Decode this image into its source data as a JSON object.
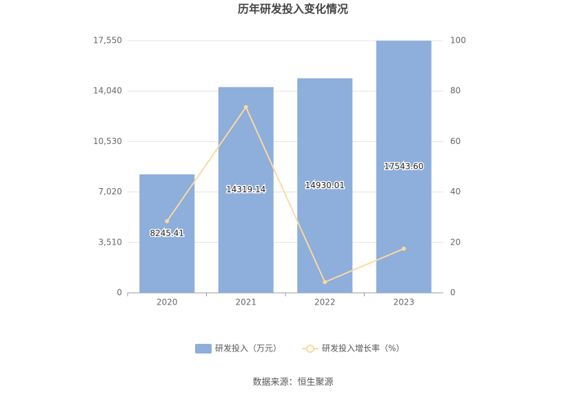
{
  "chart_data": {
    "type": "bar-line",
    "title": "历年研发投入变化情况",
    "categories": [
      "2020",
      "2021",
      "2022",
      "2023"
    ],
    "series": [
      {
        "name": "研发投入（万元）",
        "type": "bar",
        "color": "#8eaedb",
        "values": [
          8245.41,
          14319.14,
          14930.01,
          17543.6
        ],
        "value_labels": [
          "8245.41",
          "14319.14",
          "14930.01",
          "17543.60"
        ]
      },
      {
        "name": "研发投入增长率（%）",
        "type": "line",
        "axis": "y2",
        "color": "#fcd9a0",
        "values": [
          28.4,
          73.66,
          4.27,
          17.51
        ]
      }
    ],
    "ylim": [
      0,
      17550
    ],
    "yticks": [
      0,
      {
        "value": 3510,
        "label": "3,510"
      },
      {
        "value": 7020,
        "label": "7,020"
      },
      {
        "value": 10530,
        "label": "10,530"
      },
      {
        "value": 14040,
        "label": "14,040"
      },
      {
        "value": 17550,
        "label": "17,550"
      }
    ],
    "y2lim": [
      0,
      100
    ],
    "y2ticks": [
      0,
      20,
      40,
      60,
      80,
      100
    ],
    "grid": true,
    "legend": "bottom",
    "source": "数据来源：恒生聚源"
  }
}
